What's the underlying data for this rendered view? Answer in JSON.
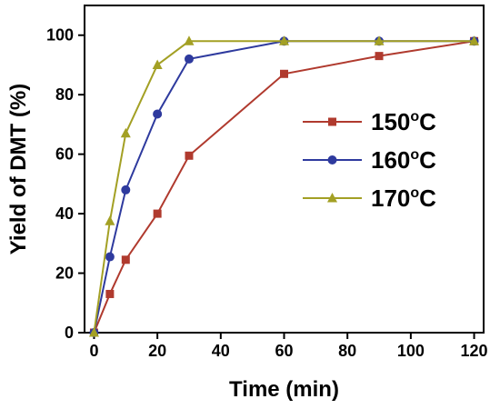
{
  "chart_data": {
    "type": "line",
    "title": "",
    "xlabel": "Time (min)",
    "ylabel": "Yield of DMT (%)",
    "xlim": [
      -3,
      123
    ],
    "ylim": [
      0,
      110
    ],
    "xticks": [
      0,
      20,
      40,
      60,
      80,
      100,
      120
    ],
    "yticks": [
      0,
      20,
      40,
      60,
      80,
      100
    ],
    "grid": false,
    "legend_position": "center-right",
    "series": [
      {
        "name": "150",
        "name_superscript": "o",
        "name_suffix": "C",
        "color": "#B03A2E",
        "marker": "square",
        "x": [
          0,
          5,
          10,
          20,
          30,
          60,
          90,
          120
        ],
        "y": [
          0,
          13,
          24.5,
          40,
          59.5,
          87,
          93,
          98
        ]
      },
      {
        "name": "160",
        "name_superscript": "o",
        "name_suffix": "C",
        "color": "#2E3A9E",
        "marker": "circle",
        "x": [
          0,
          5,
          10,
          20,
          30,
          60,
          90,
          120
        ],
        "y": [
          0,
          25.5,
          48,
          73.5,
          92,
          98,
          98,
          98
        ]
      },
      {
        "name": "170",
        "name_superscript": "o",
        "name_suffix": "C",
        "color": "#A3A024",
        "marker": "triangle",
        "x": [
          0,
          5,
          10,
          20,
          30,
          60,
          90,
          120
        ],
        "y": [
          0,
          37.5,
          67,
          90,
          98,
          98,
          98,
          98
        ]
      }
    ]
  }
}
